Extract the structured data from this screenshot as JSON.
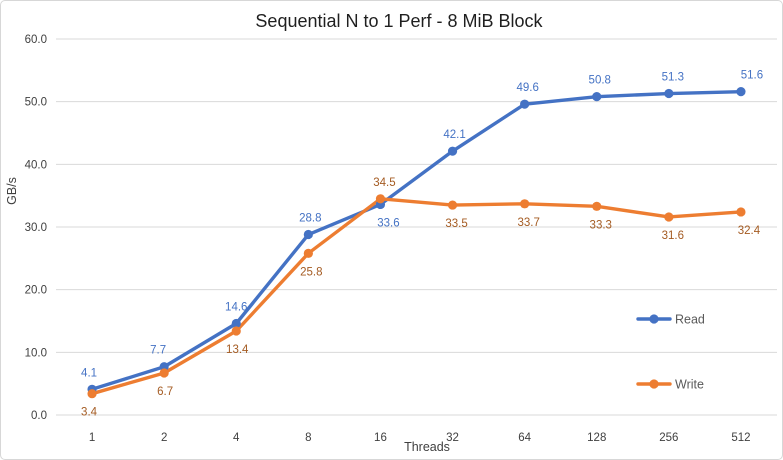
{
  "chart_data": {
    "type": "line",
    "title": "Sequential N to 1 Perf - 8 MiB Block",
    "xlabel": "Threads",
    "ylabel": "GB/s",
    "categories": [
      "1",
      "2",
      "4",
      "8",
      "16",
      "32",
      "64",
      "128",
      "256",
      "512"
    ],
    "series": [
      {
        "name": "Read",
        "color": "#4472C4",
        "label_color": "#4472C4",
        "values": [
          4.1,
          7.7,
          14.6,
          28.8,
          33.6,
          42.1,
          49.6,
          50.8,
          51.3,
          51.6
        ],
        "label_positions": [
          "above",
          "above",
          "above",
          "above",
          "below",
          "above",
          "above",
          "above",
          "above",
          "above"
        ],
        "label_dx": [
          -3,
          -6,
          0,
          2,
          8,
          2,
          3,
          3,
          4,
          11
        ]
      },
      {
        "name": "Write",
        "color": "#ED7D31",
        "label_color": "#A45B22",
        "values": [
          3.4,
          6.7,
          13.4,
          25.8,
          34.5,
          33.5,
          33.7,
          33.3,
          31.6,
          32.4
        ],
        "label_positions": [
          "below",
          "below",
          "below",
          "below",
          "above",
          "below",
          "below",
          "below",
          "below",
          "below"
        ],
        "label_dx": [
          -3,
          1,
          1,
          3,
          4,
          4,
          4,
          4,
          4,
          8
        ]
      }
    ],
    "ylim": [
      0,
      60
    ],
    "ytick_step": 10,
    "ytick_decimals": 1,
    "grid": true,
    "legend_position": "right-inside",
    "colors": {
      "gridline": "#d9d9d9",
      "axis_line": "#d9d9d9",
      "tick_text": "#404040",
      "legend_text": "#595959",
      "title_text": "#1f1f1f",
      "background": "#ffffff",
      "border": "#d7d7d7"
    }
  }
}
